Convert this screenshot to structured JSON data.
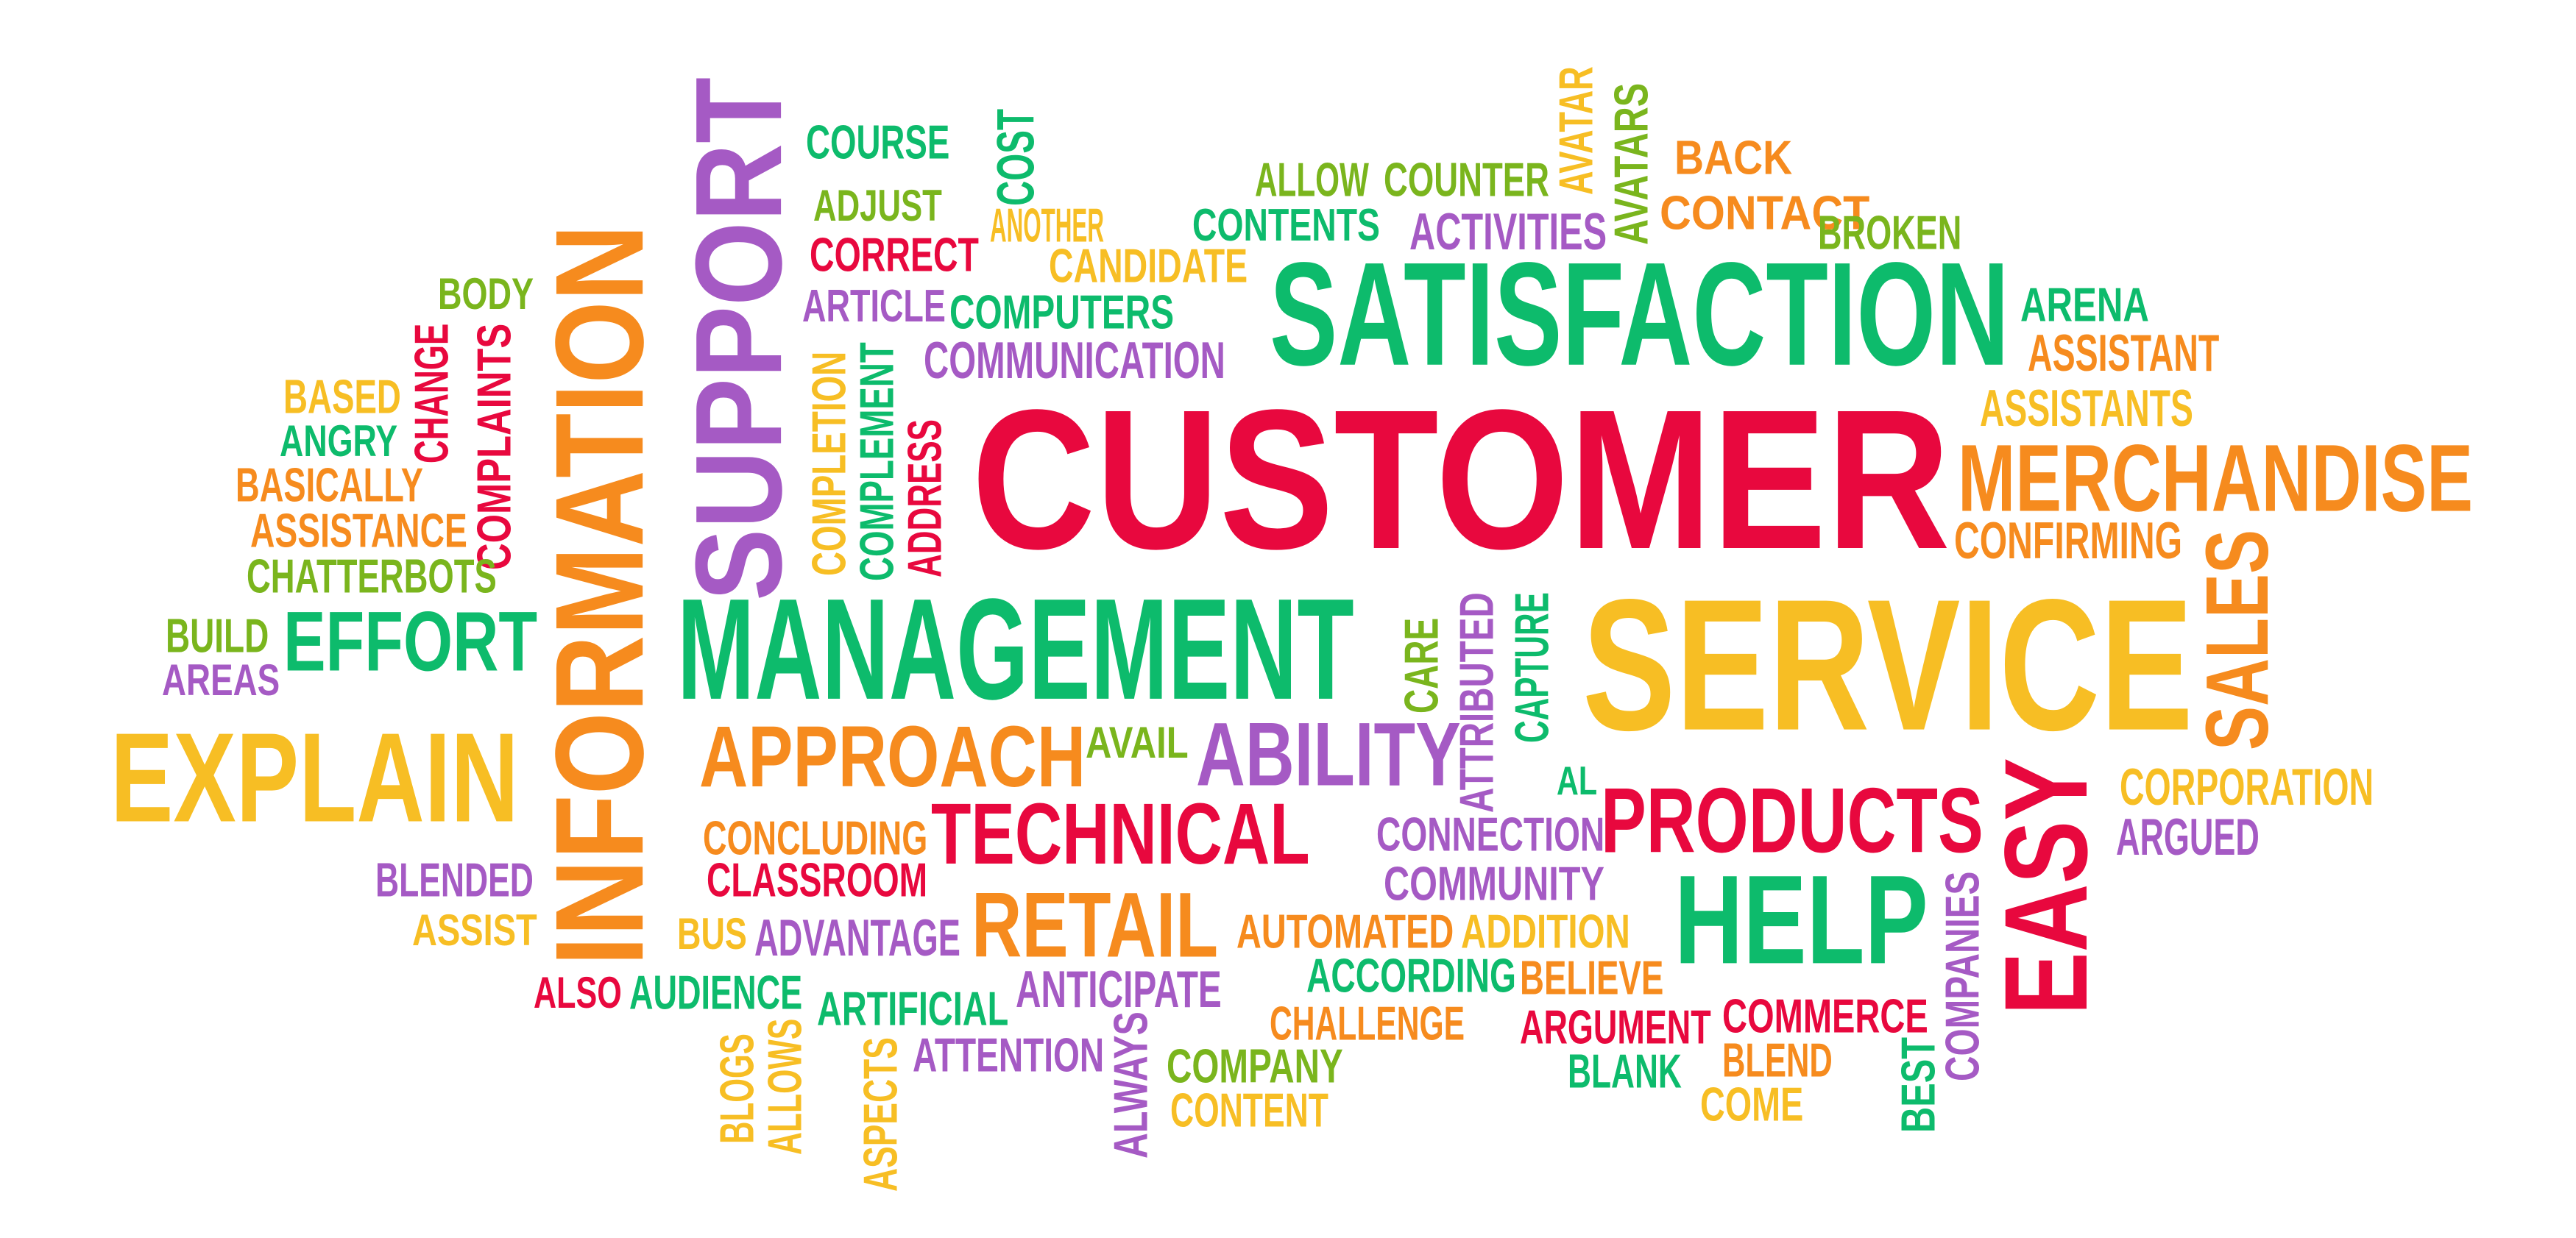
{
  "palette": {
    "red": "#e8083e",
    "orange": "#f68b1e",
    "yellow": "#f7be24",
    "green": "#0dbb6c",
    "lime": "#7ab51d",
    "purple": "#a55ac4"
  },
  "words": [
    {
      "text": "CUSTOMER",
      "color": "red"
    },
    {
      "text": "SATISFACTION",
      "color": "green"
    },
    {
      "text": "SERVICE",
      "color": "yellow"
    },
    {
      "text": "MANAGEMENT",
      "color": "green"
    },
    {
      "text": "MERCHANDISE",
      "color": "orange"
    },
    {
      "text": "EXPLAIN",
      "color": "yellow"
    },
    {
      "text": "INFORMATION",
      "color": "orange"
    },
    {
      "text": "SUPPORT",
      "color": "purple"
    },
    {
      "text": "TECHNICAL",
      "color": "red"
    },
    {
      "text": "PRODUCTS",
      "color": "red"
    },
    {
      "text": "HELP",
      "color": "green"
    },
    {
      "text": "EASY",
      "color": "red"
    },
    {
      "text": "APPROACH",
      "color": "orange"
    },
    {
      "text": "ABILITY",
      "color": "purple"
    },
    {
      "text": "RETAIL",
      "color": "orange"
    },
    {
      "text": "EFFORT",
      "color": "green"
    },
    {
      "text": "SALES",
      "color": "orange"
    },
    {
      "text": "COURSE",
      "color": "green"
    },
    {
      "text": "ADJUST",
      "color": "lime"
    },
    {
      "text": "CORRECT",
      "color": "red"
    },
    {
      "text": "ARTICLE",
      "color": "purple"
    },
    {
      "text": "COST",
      "color": "green"
    },
    {
      "text": "ANOTHER",
      "color": "yellow"
    },
    {
      "text": "CANDIDATE",
      "color": "yellow"
    },
    {
      "text": "COMPUTERS",
      "color": "green"
    },
    {
      "text": "COMMUNICATION",
      "color": "purple"
    },
    {
      "text": "ALLOW",
      "color": "lime"
    },
    {
      "text": "COUNTER",
      "color": "lime"
    },
    {
      "text": "CONTENTS",
      "color": "green"
    },
    {
      "text": "ACTIVITIES",
      "color": "purple"
    },
    {
      "text": "AVATAR",
      "color": "yellow"
    },
    {
      "text": "AVATARS",
      "color": "lime"
    },
    {
      "text": "BACK",
      "color": "orange"
    },
    {
      "text": "CONTACT",
      "color": "orange"
    },
    {
      "text": "BROKEN",
      "color": "lime"
    },
    {
      "text": "ARENA",
      "color": "green"
    },
    {
      "text": "ASSISTANT",
      "color": "orange"
    },
    {
      "text": "ASSISTANTS",
      "color": "yellow"
    },
    {
      "text": "CONFIRMING",
      "color": "orange"
    },
    {
      "text": "BODY",
      "color": "lime"
    },
    {
      "text": "CHANGE",
      "color": "red"
    },
    {
      "text": "COMPLAINTS",
      "color": "red"
    },
    {
      "text": "BASED",
      "color": "yellow"
    },
    {
      "text": "ANGRY",
      "color": "green"
    },
    {
      "text": "BASICALLY",
      "color": "orange"
    },
    {
      "text": "ASSISTANCE",
      "color": "orange"
    },
    {
      "text": "CHATTERBOTS",
      "color": "lime"
    },
    {
      "text": "BUILD",
      "color": "lime"
    },
    {
      "text": "AREAS",
      "color": "purple"
    },
    {
      "text": "COMPLETION",
      "color": "yellow"
    },
    {
      "text": "COMPLEMENT",
      "color": "green"
    },
    {
      "text": "ADDRESS",
      "color": "red"
    },
    {
      "text": "CARE",
      "color": "lime"
    },
    {
      "text": "ATTRIBUTED",
      "color": "purple"
    },
    {
      "text": "CAPTURE",
      "color": "green"
    },
    {
      "text": "AVAIL",
      "color": "lime"
    },
    {
      "text": "AL",
      "color": "green"
    },
    {
      "text": "CORPORATION",
      "color": "yellow"
    },
    {
      "text": "ARGUED",
      "color": "purple"
    },
    {
      "text": "CONCLUDING",
      "color": "orange"
    },
    {
      "text": "CLASSROOM",
      "color": "red"
    },
    {
      "text": "BLENDED",
      "color": "purple"
    },
    {
      "text": "ASSIST",
      "color": "yellow"
    },
    {
      "text": "BUS",
      "color": "yellow"
    },
    {
      "text": "ADVANTAGE",
      "color": "purple"
    },
    {
      "text": "CONNECTION",
      "color": "purple"
    },
    {
      "text": "COMMUNITY",
      "color": "purple"
    },
    {
      "text": "AUTOMATED",
      "color": "orange"
    },
    {
      "text": "ADDITION",
      "color": "yellow"
    },
    {
      "text": "ACCORDING",
      "color": "green"
    },
    {
      "text": "BELIEVE",
      "color": "orange"
    },
    {
      "text": "COMPANIES",
      "color": "purple"
    },
    {
      "text": "ALSO",
      "color": "red"
    },
    {
      "text": "AUDIENCE",
      "color": "green"
    },
    {
      "text": "ARTIFICIAL",
      "color": "green"
    },
    {
      "text": "ANTICIPATE",
      "color": "purple"
    },
    {
      "text": "CHALLENGE",
      "color": "orange"
    },
    {
      "text": "ARGUMENT",
      "color": "red"
    },
    {
      "text": "COMMERCE",
      "color": "red"
    },
    {
      "text": "ATTENTION",
      "color": "purple"
    },
    {
      "text": "COMPANY",
      "color": "lime"
    },
    {
      "text": "BLEND",
      "color": "orange"
    },
    {
      "text": "BLANK",
      "color": "green"
    },
    {
      "text": "CONTENT",
      "color": "yellow"
    },
    {
      "text": "COME",
      "color": "yellow"
    },
    {
      "text": "BEST",
      "color": "green"
    },
    {
      "text": "BLOGS",
      "color": "yellow"
    },
    {
      "text": "ALLOWS",
      "color": "yellow"
    },
    {
      "text": "ASPECTS",
      "color": "yellow"
    },
    {
      "text": "ALWAYS",
      "color": "purple"
    }
  ]
}
